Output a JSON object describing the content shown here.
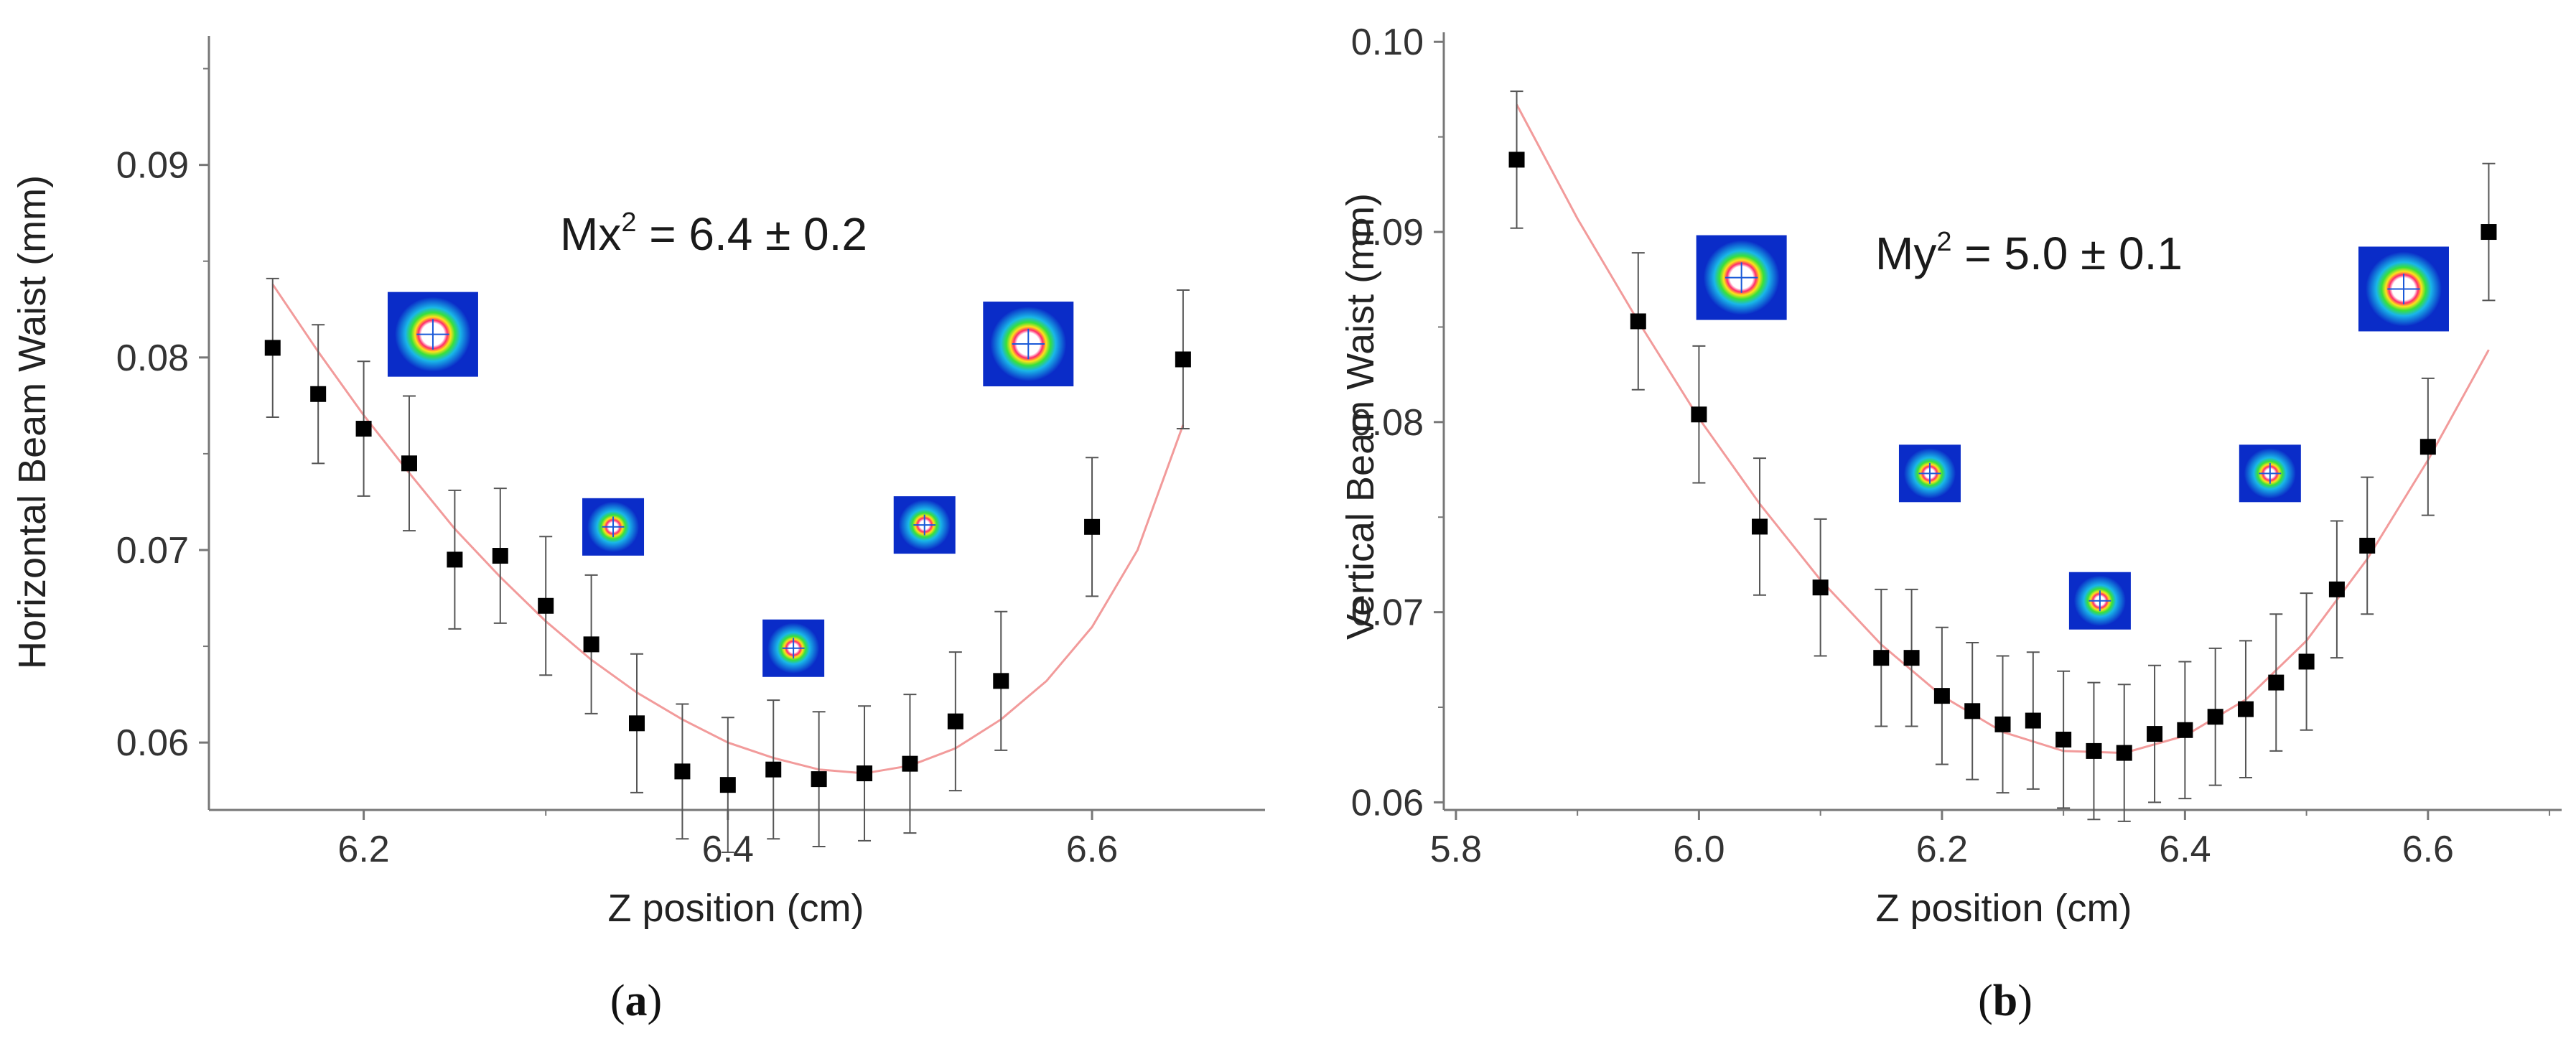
{
  "figure": {
    "panels": [
      "a",
      "b"
    ]
  },
  "chart_data": [
    {
      "type": "scatter",
      "panel": "a",
      "panel_label": "a",
      "title": "",
      "xlabel": "Z position (cm)",
      "ylabel": "Horizontal Beam Waist (mm)",
      "annotation": {
        "prefix": "Mx",
        "sup": "2",
        "text": " = 6.4 ± 0.2"
      },
      "xlim": [
        6.115,
        6.695
      ],
      "ylim": [
        0.0565,
        0.0967
      ],
      "xticks": [
        6.2,
        6.4,
        6.6
      ],
      "xtick_labels": [
        "6.2",
        "6.4",
        "6.6"
      ],
      "yticks": [
        0.06,
        0.07,
        0.08,
        0.09
      ],
      "ytick_labels": [
        "0.06",
        "0.07",
        "0.08",
        "0.09"
      ],
      "series": [
        {
          "name": "measured",
          "x": [
            6.15,
            6.175,
            6.2,
            6.225,
            6.25,
            6.275,
            6.3,
            6.325,
            6.35,
            6.375,
            6.4,
            6.425,
            6.45,
            6.475,
            6.5,
            6.525,
            6.55,
            6.6,
            6.65
          ],
          "y": [
            0.0805,
            0.0781,
            0.0763,
            0.0745,
            0.0695,
            0.0697,
            0.0671,
            0.0651,
            0.061,
            0.0585,
            0.0578,
            0.0586,
            0.0581,
            0.0584,
            0.0589,
            0.0611,
            0.0632,
            0.0712,
            0.0799
          ],
          "err": [
            0.0036,
            0.0036,
            0.0035,
            0.0035,
            0.0036,
            0.0035,
            0.0036,
            0.0036,
            0.0036,
            0.0035,
            0.0035,
            0.0036,
            0.0035,
            0.0035,
            0.0036,
            0.0036,
            0.0036,
            0.0036,
            0.0036
          ]
        }
      ],
      "fit": {
        "name": "fit",
        "color": "#f29b9b",
        "x": [
          6.15,
          6.175,
          6.2,
          6.225,
          6.25,
          6.275,
          6.3,
          6.325,
          6.35,
          6.375,
          6.4,
          6.425,
          6.45,
          6.475,
          6.5,
          6.525,
          6.55,
          6.575,
          6.6,
          6.625,
          6.65
        ],
        "y": [
          0.0838,
          0.0803,
          0.077,
          0.074,
          0.0711,
          0.0686,
          0.0663,
          0.0643,
          0.0626,
          0.0612,
          0.06,
          0.0592,
          0.0586,
          0.0584,
          0.0588,
          0.0597,
          0.0612,
          0.0632,
          0.066,
          0.07,
          0.0765
        ]
      },
      "insets": [
        {
          "x": 6.238,
          "y": 0.0812,
          "kind": "large"
        },
        {
          "x": 6.337,
          "y": 0.0712,
          "kind": "small"
        },
        {
          "x": 6.436,
          "y": 0.0649,
          "kind": "small"
        },
        {
          "x": 6.508,
          "y": 0.0713,
          "kind": "small"
        },
        {
          "x": 6.565,
          "y": 0.0807,
          "kind": "large"
        }
      ]
    },
    {
      "type": "scatter",
      "panel": "b",
      "panel_label": "b",
      "title": "",
      "xlabel": "Z position (cm)",
      "ylabel": "Vertical Beam Waist (mm)",
      "annotation": {
        "prefix": "My",
        "sup": "2",
        "text": " = 5.0 ± 0.1"
      },
      "xlim": [
        5.79,
        6.71
      ],
      "ylim": [
        0.0596,
        0.1005
      ],
      "xticks": [
        5.8,
        6.0,
        6.2,
        6.4,
        6.6
      ],
      "xtick_labels": [
        "5.8",
        "6.0",
        "6.2",
        "6.4",
        "6.6"
      ],
      "yticks": [
        0.06,
        0.07,
        0.08,
        0.09,
        0.1
      ],
      "ytick_labels": [
        "0.06",
        "0.07",
        "0.08",
        "0.09",
        "0.10"
      ],
      "series": [
        {
          "name": "measured",
          "x": [
            5.85,
            5.95,
            6.0,
            6.05,
            6.1,
            6.15,
            6.175,
            6.2,
            6.225,
            6.25,
            6.275,
            6.3,
            6.325,
            6.35,
            6.375,
            6.4,
            6.425,
            6.45,
            6.475,
            6.5,
            6.525,
            6.55,
            6.6,
            6.65
          ],
          "y": [
            0.0938,
            0.0853,
            0.0804,
            0.0745,
            0.0713,
            0.0676,
            0.0676,
            0.0656,
            0.0648,
            0.0641,
            0.0643,
            0.0633,
            0.0627,
            0.0626,
            0.0636,
            0.0638,
            0.0645,
            0.0649,
            0.0663,
            0.0674,
            0.0712,
            0.0735,
            0.0787,
            0.09
          ],
          "err": [
            0.0036,
            0.0036,
            0.0036,
            0.0036,
            0.0036,
            0.0036,
            0.0036,
            0.0036,
            0.0036,
            0.0036,
            0.0036,
            0.0036,
            0.0036,
            0.0036,
            0.0036,
            0.0036,
            0.0036,
            0.0036,
            0.0036,
            0.0036,
            0.0036,
            0.0036,
            0.0036,
            0.0036
          ]
        }
      ],
      "fit": {
        "name": "fit",
        "color": "#f29b9b",
        "x": [
          5.85,
          5.9,
          5.95,
          6.0,
          6.05,
          6.1,
          6.15,
          6.2,
          6.25,
          6.3,
          6.35,
          6.4,
          6.45,
          6.5,
          6.55,
          6.6,
          6.65
        ],
        "y": [
          0.0967,
          0.0907,
          0.0853,
          0.0802,
          0.0757,
          0.0717,
          0.0683,
          0.0656,
          0.0637,
          0.0627,
          0.0626,
          0.0635,
          0.0654,
          0.0685,
          0.0728,
          0.078,
          0.0838
        ]
      },
      "insets": [
        {
          "x": 6.035,
          "y": 0.0876,
          "kind": "large"
        },
        {
          "x": 6.19,
          "y": 0.0773,
          "kind": "small"
        },
        {
          "x": 6.33,
          "y": 0.0706,
          "kind": "small"
        },
        {
          "x": 6.47,
          "y": 0.0773,
          "kind": "small"
        },
        {
          "x": 6.58,
          "y": 0.087,
          "kind": "large"
        }
      ]
    }
  ]
}
